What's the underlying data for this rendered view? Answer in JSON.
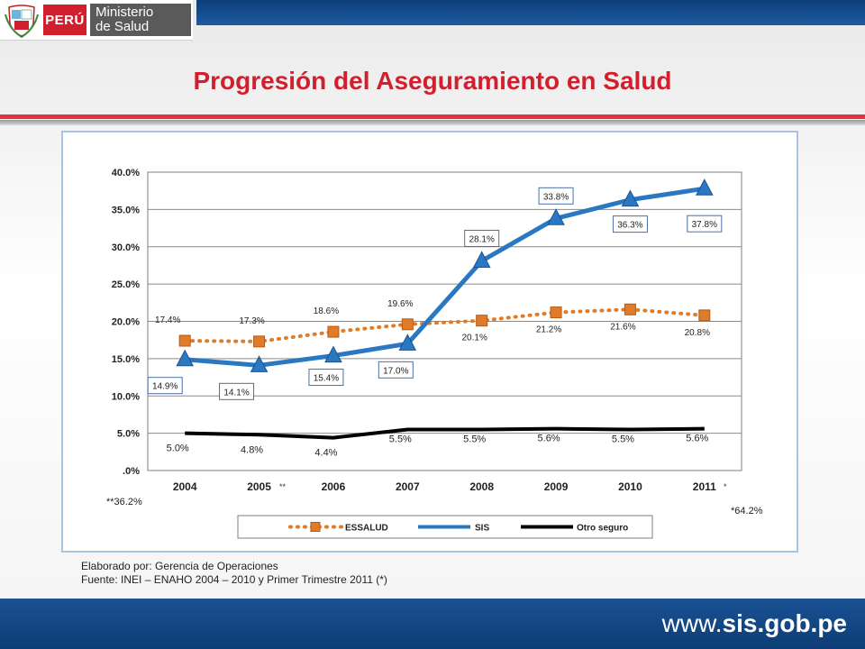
{
  "header": {
    "country": "PERÚ",
    "ministry_line1": "Ministerio",
    "ministry_line2": "de Salud"
  },
  "title": "Progresión del Aseguramiento en Salud",
  "chart_data": {
    "type": "line",
    "categories": [
      "2004",
      "2005",
      "2006",
      "2007",
      "2008",
      "2009",
      "2010",
      "2011"
    ],
    "category_suffixes": [
      "",
      "**",
      "",
      "",
      "",
      "",
      "",
      "*"
    ],
    "ylim": [
      0,
      40
    ],
    "yticks": [
      ".0%",
      "5.0%",
      "10.0%",
      "15.0%",
      "20.0%",
      "25.0%",
      "30.0%",
      "35.0%",
      "40.0%"
    ],
    "grid": true,
    "legend_position": "bottom",
    "series": [
      {
        "name": "ESSALUD",
        "color": "#e07b28",
        "style": "dotted",
        "marker": "square",
        "values": [
          17.4,
          17.3,
          18.6,
          19.6,
          20.1,
          21.2,
          21.6,
          20.8
        ],
        "labels": [
          "17.4%",
          "17.3%",
          "18.6%",
          "19.6%",
          "20.1%",
          "21.2%",
          "21.6%",
          "20.8%"
        ]
      },
      {
        "name": "SIS",
        "color": "#2a78c2",
        "style": "solid",
        "marker": "triangle",
        "values": [
          14.9,
          14.1,
          15.4,
          17.0,
          28.1,
          33.8,
          36.3,
          37.8
        ],
        "labels": [
          "14.9%",
          "14.1%",
          "15.4%",
          "17.0%",
          "28.1%",
          "33.8%",
          "36.3%",
          "37.8%"
        ]
      },
      {
        "name": "Otro seguro",
        "color": "#000000",
        "style": "solid",
        "marker": "none",
        "values": [
          5.0,
          4.8,
          4.4,
          5.5,
          5.5,
          5.6,
          5.5,
          5.6
        ],
        "labels": [
          "5.0%",
          "4.8%",
          "4.4%",
          "5.5%",
          "5.5%",
          "5.6%",
          "5.5%",
          "5.6%"
        ]
      }
    ],
    "annotations": [
      "**36.2%",
      "*64.2%"
    ]
  },
  "credit": {
    "line1": "Elaborado por: Gerencia de Operaciones",
    "line2": "Fuente: INEI – ENAHO 2004 – 2010 y Primer Trimestre 2011 (*)"
  },
  "footer": {
    "url_prefix": "www.",
    "url_main": "sis.gob.pe"
  }
}
